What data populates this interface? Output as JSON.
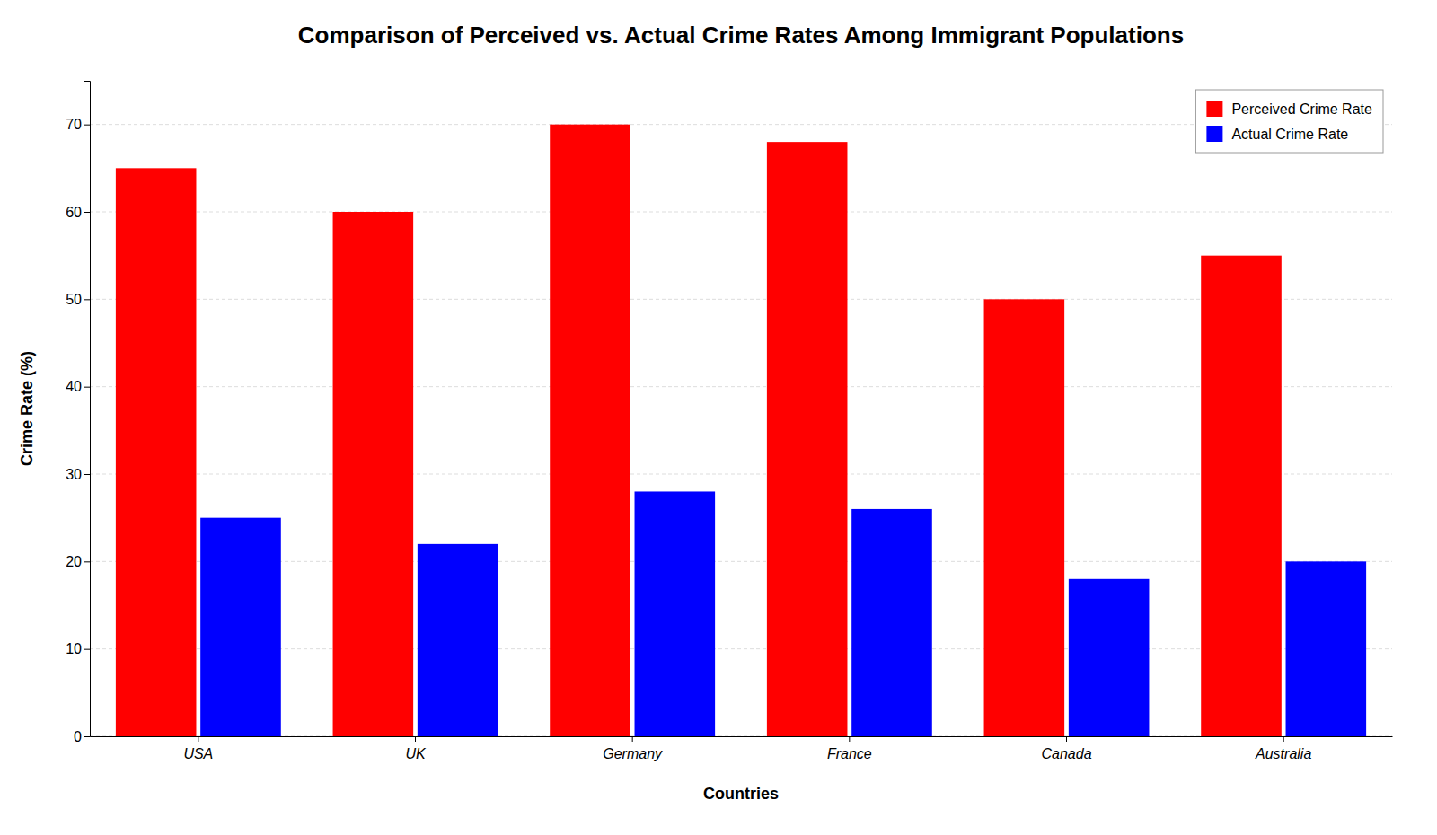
{
  "chart_data": {
    "type": "bar",
    "title": "Comparison of Perceived vs. Actual Crime Rates Among Immigrant Populations",
    "xlabel": "Countries",
    "ylabel": "Crime Rate (%)",
    "categories": [
      "USA",
      "UK",
      "Germany",
      "France",
      "Canada",
      "Australia"
    ],
    "series": [
      {
        "name": "Perceived Crime Rate",
        "color": "#ff0000",
        "values": [
          65,
          60,
          70,
          68,
          50,
          55
        ]
      },
      {
        "name": "Actual Crime Rate",
        "color": "#0000ff",
        "values": [
          25,
          22,
          28,
          26,
          18,
          20
        ]
      }
    ],
    "ylim": [
      0,
      75
    ],
    "yticks": [
      0,
      10,
      20,
      30,
      40,
      50,
      60,
      70
    ],
    "grid": true,
    "legend": "upper right"
  }
}
